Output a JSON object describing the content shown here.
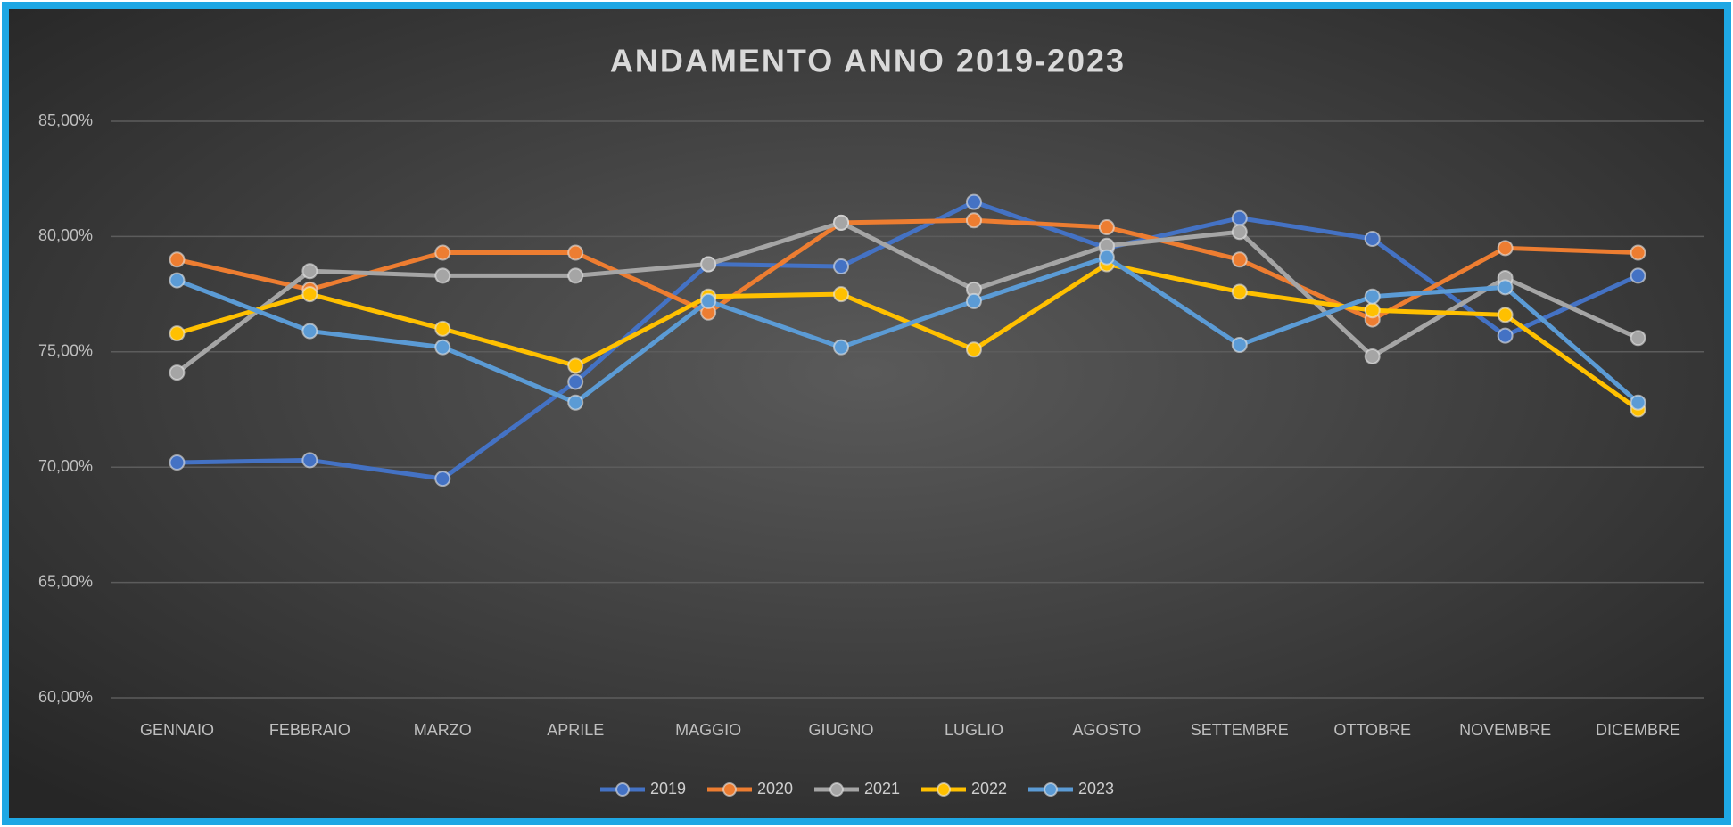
{
  "chart_data": {
    "type": "line",
    "title": "ANDAMENTO ANNO 2019-2023",
    "categories": [
      "GENNAIO",
      "FEBBRAIO",
      "MARZO",
      "APRILE",
      "MAGGIO",
      "GIUGNO",
      "LUGLIO",
      "AGOSTO",
      "SETTEMBRE",
      "OTTOBRE",
      "NOVEMBRE",
      "DICEMBRE"
    ],
    "series": [
      {
        "name": "2019",
        "color": "#4472c4",
        "values": [
          70.2,
          70.3,
          69.5,
          73.7,
          78.8,
          78.7,
          81.5,
          79.5,
          80.8,
          79.9,
          75.7,
          78.3
        ]
      },
      {
        "name": "2020",
        "color": "#ed7d31",
        "values": [
          79.0,
          77.7,
          79.3,
          79.3,
          76.7,
          80.6,
          80.7,
          80.4,
          79.0,
          76.4,
          79.5,
          79.3
        ]
      },
      {
        "name": "2021",
        "color": "#a5a5a5",
        "values": [
          74.1,
          78.5,
          78.3,
          78.3,
          78.8,
          80.6,
          77.7,
          79.6,
          80.2,
          74.8,
          78.2,
          75.6
        ]
      },
      {
        "name": "2022",
        "color": "#ffc000",
        "values": [
          75.8,
          77.5,
          76.0,
          74.4,
          77.4,
          77.5,
          75.1,
          78.8,
          77.6,
          76.8,
          76.6,
          72.5
        ]
      },
      {
        "name": "2023",
        "color": "#5b9bd5",
        "values": [
          78.1,
          75.9,
          75.2,
          72.8,
          77.2,
          75.2,
          77.2,
          79.1,
          75.3,
          77.4,
          77.8,
          72.8
        ]
      }
    ],
    "ylim": [
      60,
      85
    ],
    "yticks": [
      {
        "value": 60,
        "label": "60,00%"
      },
      {
        "value": 65,
        "label": "65,00%"
      },
      {
        "value": 70,
        "label": "70,00%"
      },
      {
        "value": 75,
        "label": "75,00%"
      },
      {
        "value": 80,
        "label": "80,00%"
      },
      {
        "value": 85,
        "label": "85,00%"
      }
    ],
    "grid": true,
    "legend": "bottom"
  }
}
